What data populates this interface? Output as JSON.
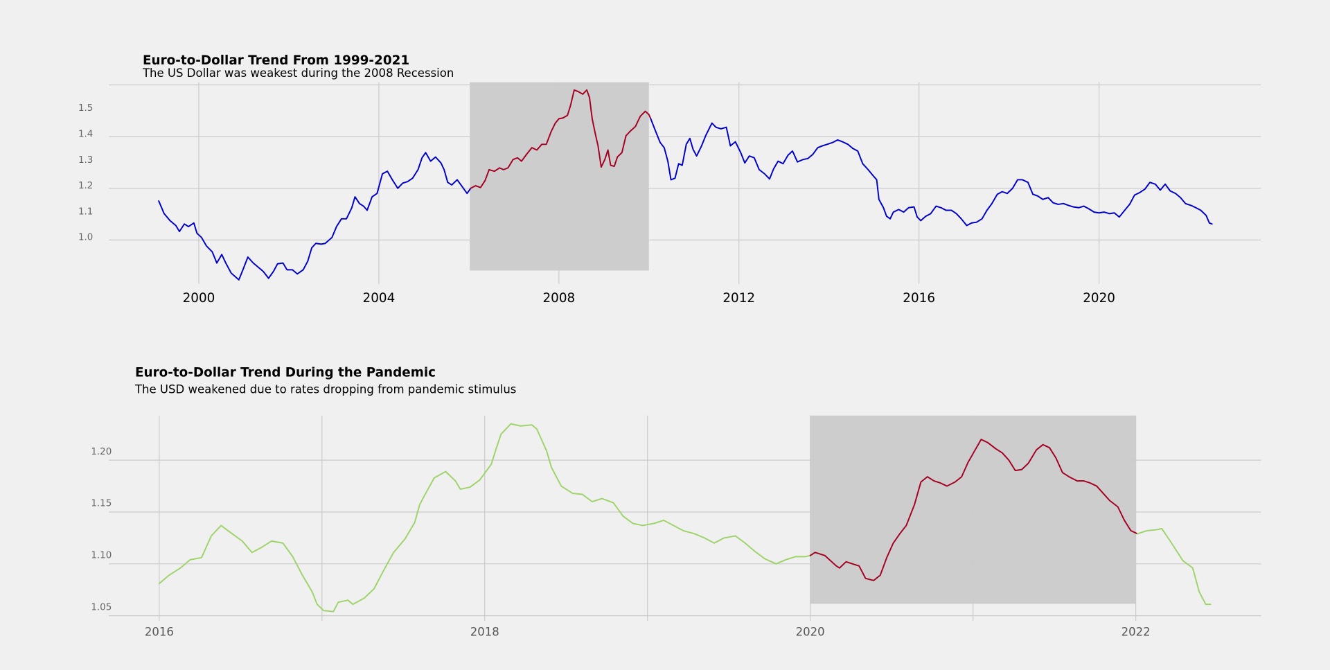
{
  "chart_data": [
    {
      "type": "line",
      "title": "Euro-to-Dollar Trend From 1999-2021",
      "subtitle": "The US Dollar was weakest during the 2008 Recession",
      "xlim": [
        1998.0,
        2023.6
      ],
      "ylim": [
        0.84,
        1.61
      ],
      "xticks": [
        2000,
        2004,
        2008,
        2012,
        2016,
        2020
      ],
      "yticks": [
        {
          "value": 1.0,
          "label": "1.0"
        },
        1.1,
        1.2,
        1.3,
        1.4,
        1.5
      ],
      "ygrid": [
        1.0,
        1.2,
        1.4,
        1.6
      ],
      "grid": true,
      "highlight": {
        "x": [
          2006.02,
          2010.0
        ],
        "y": [
          0.882,
          1.61
        ],
        "color": "#cdcdcd"
      },
      "series": [
        {
          "color": "#0000cc",
          "x": [
            1999.11,
            1999.23,
            1999.36,
            1999.49,
            1999.57,
            1999.68,
            1999.77,
            1999.89,
            1999.96,
            2000.06,
            2000.17,
            2000.3,
            2000.4,
            2000.51,
            2000.6,
            2000.72,
            2000.89,
            2000.98,
            2001.09,
            2001.21,
            2001.32,
            2001.43,
            2001.55,
            2001.66,
            2001.75,
            2001.87,
            2001.96,
            2002.08,
            2002.19,
            2002.32,
            2002.42,
            2002.51,
            2002.6,
            2002.72,
            2002.81,
            2002.96,
            2003.06,
            2003.17,
            2003.28,
            2003.4,
            2003.47,
            2003.57,
            2003.66,
            2003.74,
            2003.85,
            2003.96,
            2004.08,
            2004.19,
            2004.3,
            2004.42,
            2004.53,
            2004.64,
            2004.75,
            2004.87,
            2004.96,
            2005.04,
            2005.15,
            2005.26,
            2005.38,
            2005.45,
            2005.53,
            2005.62,
            2005.74,
            2005.85,
            2005.96,
            2006.04
          ],
          "values": [
            1.151,
            1.102,
            1.075,
            1.056,
            1.033,
            1.062,
            1.052,
            1.066,
            1.026,
            1.01,
            0.977,
            0.954,
            0.911,
            0.944,
            0.911,
            0.872,
            0.846,
            0.885,
            0.934,
            0.911,
            0.895,
            0.879,
            0.852,
            0.879,
            0.908,
            0.911,
            0.885,
            0.885,
            0.869,
            0.885,
            0.918,
            0.97,
            0.987,
            0.984,
            0.987,
            1.01,
            1.052,
            1.082,
            1.082,
            1.125,
            1.167,
            1.141,
            1.131,
            1.115,
            1.167,
            1.18,
            1.256,
            1.266,
            1.233,
            1.2,
            1.22,
            1.226,
            1.239,
            1.272,
            1.318,
            1.338,
            1.305,
            1.321,
            1.298,
            1.272,
            1.223,
            1.213,
            1.233,
            1.207,
            1.18,
            1.2
          ]
        },
        {
          "color": "#a50021",
          "x": [
            2006.04,
            2006.15,
            2006.26,
            2006.36,
            2006.45,
            2006.57,
            2006.68,
            2006.77,
            2006.87,
            2006.98,
            2007.08,
            2007.17,
            2007.28,
            2007.4,
            2007.51,
            2007.62,
            2007.72,
            2007.83,
            2007.92,
            2008.0,
            2008.09,
            2008.19,
            2008.26,
            2008.34,
            2008.43,
            2008.53,
            2008.62,
            2008.68,
            2008.74,
            2008.81,
            2008.87,
            2008.94,
            2009.02,
            2009.09,
            2009.15,
            2009.23,
            2009.3,
            2009.4,
            2009.49,
            2009.58,
            2009.7,
            2009.81,
            2009.92,
            2010.0,
            2010.04
          ],
          "values": [
            1.2,
            1.21,
            1.203,
            1.23,
            1.272,
            1.266,
            1.279,
            1.272,
            1.279,
            1.311,
            1.318,
            1.305,
            1.331,
            1.357,
            1.348,
            1.37,
            1.37,
            1.42,
            1.452,
            1.469,
            1.472,
            1.482,
            1.521,
            1.58,
            1.574,
            1.564,
            1.58,
            1.551,
            1.469,
            1.41,
            1.364,
            1.282,
            1.311,
            1.348,
            1.289,
            1.285,
            1.321,
            1.338,
            1.403,
            1.42,
            1.439,
            1.479,
            1.498,
            1.485,
            1.469
          ]
        },
        {
          "color": "#0000cc",
          "x": [
            2010.04,
            2010.15,
            2010.25,
            2010.34,
            2010.42,
            2010.49,
            2010.58,
            2010.66,
            2010.74,
            2010.83,
            2010.91,
            2010.98,
            2011.06,
            2011.17,
            2011.26,
            2011.4,
            2011.49,
            2011.6,
            2011.72,
            2011.81,
            2011.92,
            2012.04,
            2012.13,
            2012.23,
            2012.34,
            2012.45,
            2012.57,
            2012.68,
            2012.77,
            2012.87,
            2012.98,
            2013.09,
            2013.19,
            2013.3,
            2013.42,
            2013.53,
            2013.64,
            2013.75,
            2013.85,
            2013.96,
            2014.08,
            2014.19,
            2014.3,
            2014.42,
            2014.53,
            2014.64,
            2014.75,
            2014.87,
            2014.98,
            2015.06,
            2015.11,
            2015.21,
            2015.28,
            2015.36,
            2015.43,
            2015.55,
            2015.66,
            2015.77,
            2015.89,
            2015.96,
            2016.04,
            2016.15,
            2016.26,
            2016.38,
            2016.49,
            2016.6,
            2016.72,
            2016.83,
            2016.94,
            2017.06,
            2017.17,
            2017.28,
            2017.4,
            2017.51,
            2017.62,
            2017.74,
            2017.85,
            2017.96,
            2018.08,
            2018.19,
            2018.3,
            2018.42,
            2018.53,
            2018.64,
            2018.75,
            2018.87,
            2018.98,
            2019.09,
            2019.21,
            2019.32,
            2019.43,
            2019.55,
            2019.66,
            2019.77,
            2019.89,
            2020.0,
            2020.11,
            2020.23,
            2020.34,
            2020.45,
            2020.57,
            2020.68,
            2020.79,
            2020.91,
            2021.02,
            2021.13,
            2021.25,
            2021.36,
            2021.47,
            2021.58,
            2021.7,
            2021.81,
            2021.92,
            2022.04,
            2022.15,
            2022.26,
            2022.38,
            2022.45,
            2022.51
          ],
          "values": [
            1.469,
            1.42,
            1.377,
            1.357,
            1.305,
            1.233,
            1.239,
            1.295,
            1.289,
            1.37,
            1.393,
            1.351,
            1.325,
            1.364,
            1.403,
            1.452,
            1.436,
            1.43,
            1.436,
            1.364,
            1.38,
            1.338,
            1.298,
            1.325,
            1.318,
            1.272,
            1.256,
            1.236,
            1.275,
            1.305,
            1.295,
            1.328,
            1.344,
            1.302,
            1.311,
            1.315,
            1.331,
            1.357,
            1.364,
            1.37,
            1.377,
            1.387,
            1.38,
            1.37,
            1.354,
            1.344,
            1.295,
            1.272,
            1.249,
            1.233,
            1.157,
            1.125,
            1.092,
            1.082,
            1.108,
            1.118,
            1.108,
            1.125,
            1.128,
            1.089,
            1.075,
            1.092,
            1.102,
            1.131,
            1.125,
            1.115,
            1.115,
            1.102,
            1.082,
            1.056,
            1.066,
            1.069,
            1.082,
            1.115,
            1.141,
            1.177,
            1.187,
            1.18,
            1.2,
            1.233,
            1.233,
            1.223,
            1.177,
            1.17,
            1.157,
            1.164,
            1.144,
            1.138,
            1.141,
            1.134,
            1.128,
            1.125,
            1.131,
            1.121,
            1.108,
            1.105,
            1.108,
            1.102,
            1.105,
            1.089,
            1.115,
            1.138,
            1.174,
            1.184,
            1.197,
            1.223,
            1.216,
            1.193,
            1.216,
            1.19,
            1.18,
            1.164,
            1.141,
            1.134,
            1.125,
            1.115,
            1.095,
            1.066,
            1.062
          ]
        }
      ]
    },
    {
      "type": "line",
      "title": "Euro-to-Dollar Trend During the Pandemic",
      "subtitle": "The USD weakened due to rates dropping from pandemic stimulus",
      "xlim": [
        2015.69,
        2022.77
      ],
      "ylim": [
        1.05,
        1.243
      ],
      "xticks": [
        2016,
        2018,
        2020,
        2022
      ],
      "xminorticks": [
        2017,
        2019,
        2021
      ],
      "yticks": [
        1.05,
        {
          "value": 1.1,
          "label": "1.10"
        },
        1.15,
        {
          "value": 1.2,
          "label": "1.20"
        }
      ],
      "grid": true,
      "highlight": {
        "x": [
          2020.0,
          2022.0
        ],
        "y": [
          1.0615,
          1.243
        ],
        "color": "#cdcdcd"
      },
      "series": [
        {
          "color": "#9ed36a",
          "x": [
            2016.0,
            2016.06,
            2016.13,
            2016.19,
            2016.26,
            2016.32,
            2016.38,
            2016.44,
            2016.51,
            2016.57,
            2016.63,
            2016.69,
            2016.76,
            2016.82,
            2016.88,
            2016.94,
            2016.97,
            2017.01,
            2017.07,
            2017.1,
            2017.16,
            2017.19,
            2017.26,
            2017.32,
            2017.38,
            2017.44,
            2017.51,
            2017.57,
            2017.6,
            2017.63,
            2017.69,
            2017.76,
            2017.82,
            2017.85,
            2017.91,
            2017.97,
            2018.04,
            2018.07,
            2018.1,
            2018.16,
            2018.22,
            2018.29,
            2018.32,
            2018.38,
            2018.41,
            2018.47,
            2018.54,
            2018.6,
            2018.66,
            2018.72,
            2018.79,
            2018.85,
            2018.91,
            2018.97,
            2019.04,
            2019.1,
            2019.16,
            2019.22,
            2019.29,
            2019.35,
            2019.41,
            2019.47,
            2019.54,
            2019.6,
            2019.66,
            2019.72,
            2019.79,
            2019.85,
            2019.91,
            2019.97,
            2020.0
          ],
          "values": [
            1.081,
            1.089,
            1.096,
            1.104,
            1.106,
            1.127,
            1.137,
            1.13,
            1.122,
            1.111,
            1.116,
            1.122,
            1.12,
            1.107,
            1.089,
            1.073,
            1.061,
            1.055,
            1.054,
            1.063,
            1.065,
            1.061,
            1.067,
            1.076,
            1.094,
            1.111,
            1.124,
            1.14,
            1.157,
            1.166,
            1.183,
            1.189,
            1.18,
            1.172,
            1.174,
            1.181,
            1.196,
            1.211,
            1.225,
            1.235,
            1.233,
            1.234,
            1.23,
            1.209,
            1.193,
            1.175,
            1.168,
            1.167,
            1.16,
            1.163,
            1.159,
            1.146,
            1.139,
            1.137,
            1.139,
            1.142,
            1.137,
            1.132,
            1.129,
            1.125,
            1.12,
            1.125,
            1.127,
            1.12,
            1.112,
            1.105,
            1.1,
            1.104,
            1.107,
            1.107,
            1.108
          ]
        },
        {
          "color": "#a50021",
          "x": [
            2020.0,
            2020.03,
            2020.09,
            2020.16,
            2020.18,
            2020.22,
            2020.26,
            2020.3,
            2020.34,
            2020.39,
            2020.43,
            2020.47,
            2020.51,
            2020.55,
            2020.59,
            2020.64,
            2020.68,
            2020.72,
            2020.76,
            2020.8,
            2020.84,
            2020.89,
            2020.93,
            2020.97,
            2021.01,
            2021.05,
            2021.09,
            2021.14,
            2021.18,
            2021.22,
            2021.26,
            2021.3,
            2021.34,
            2021.39,
            2021.43,
            2021.47,
            2021.51,
            2021.55,
            2021.59,
            2021.64,
            2021.68,
            2021.72,
            2021.76,
            2021.8,
            2021.84,
            2021.89,
            2021.93,
            2021.97,
            2022.01
          ],
          "values": [
            1.108,
            1.111,
            1.108,
            1.098,
            1.096,
            1.102,
            1.1,
            1.098,
            1.086,
            1.084,
            1.089,
            1.106,
            1.12,
            1.129,
            1.137,
            1.157,
            1.179,
            1.184,
            1.18,
            1.178,
            1.175,
            1.179,
            1.184,
            1.198,
            1.209,
            1.22,
            1.217,
            1.211,
            1.207,
            1.2,
            1.19,
            1.191,
            1.197,
            1.21,
            1.215,
            1.212,
            1.202,
            1.188,
            1.184,
            1.18,
            1.18,
            1.178,
            1.175,
            1.168,
            1.161,
            1.155,
            1.142,
            1.132,
            1.129
          ]
        },
        {
          "color": "#9ed36a",
          "x": [
            2022.01,
            2022.07,
            2022.13,
            2022.16,
            2022.22,
            2022.29,
            2022.35,
            2022.39,
            2022.43,
            2022.46
          ],
          "values": [
            1.129,
            1.132,
            1.133,
            1.134,
            1.12,
            1.103,
            1.096,
            1.073,
            1.061,
            1.061
          ]
        }
      ]
    }
  ]
}
